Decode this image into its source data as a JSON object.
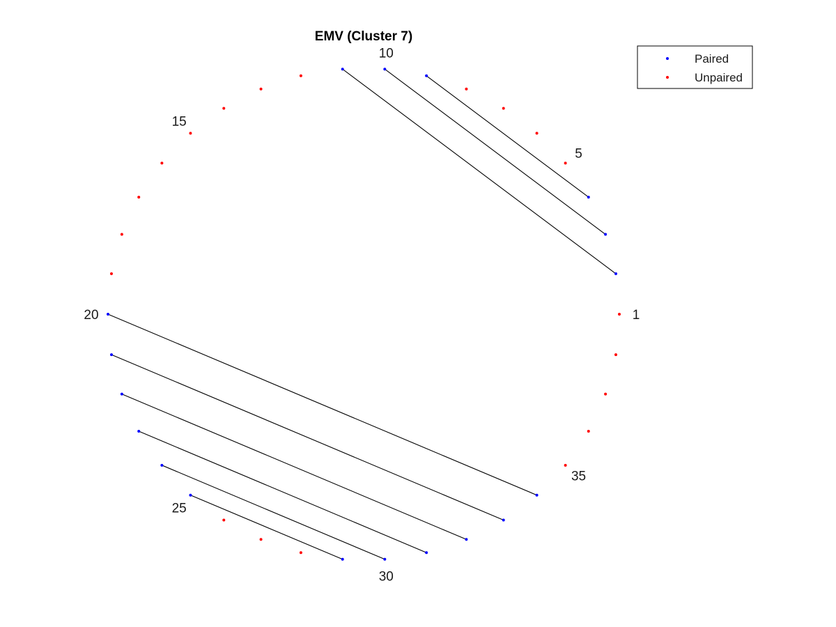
{
  "chart_data": {
    "type": "scatter",
    "title": "EMV (Cluster 7)",
    "xlabel": "",
    "ylabel": "",
    "grid": false,
    "legend_position": "top-right",
    "node_count": 38,
    "tick_labels": [
      1,
      5,
      10,
      15,
      20,
      25,
      30,
      35
    ],
    "series": [
      {
        "name": "Paired",
        "color": "#0000ff",
        "nodes": [
          2,
          3,
          4,
          9,
          10,
          11,
          20,
          21,
          22,
          23,
          24,
          25,
          29,
          30,
          31,
          32,
          33,
          34
        ]
      },
      {
        "name": "Unpaired",
        "color": "#ff0000",
        "nodes": [
          1,
          5,
          6,
          7,
          8,
          12,
          13,
          14,
          15,
          16,
          17,
          18,
          19,
          26,
          27,
          28,
          35,
          36,
          37,
          38
        ]
      }
    ],
    "pairs": [
      [
        2,
        11
      ],
      [
        3,
        10
      ],
      [
        4,
        9
      ],
      [
        20,
        34
      ],
      [
        21,
        33
      ],
      [
        22,
        32
      ],
      [
        23,
        31
      ],
      [
        24,
        30
      ],
      [
        25,
        29
      ]
    ]
  }
}
